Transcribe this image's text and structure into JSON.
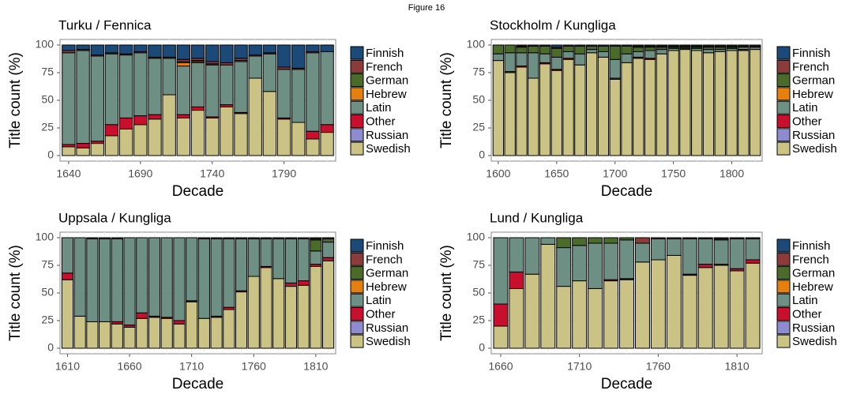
{
  "title": "Figure 16",
  "chart_data": [
    {
      "type": "bar",
      "stacked": true,
      "title": "Turku / Fennica",
      "x_label": "Decade",
      "y_label": "Title count (%)",
      "categories": [
        "1640",
        null,
        null,
        null,
        null,
        "1690",
        null,
        null,
        null,
        null,
        "1740",
        null,
        null,
        null,
        null,
        "1790",
        null,
        null,
        null
      ],
      "ylim": [
        0,
        100
      ],
      "yticks": [
        0,
        25,
        50,
        75,
        100
      ],
      "grid": true,
      "series": [
        {
          "name": "Finnish",
          "color": "#1c4a78",
          "values": [
            5,
            4,
            9,
            7,
            8,
            6,
            11,
            11,
            13,
            12,
            15,
            16,
            12,
            9,
            7,
            20,
            21,
            6,
            6
          ]
        },
        {
          "name": "French",
          "color": "#8c3b3b",
          "values": [
            2,
            1,
            1,
            1,
            1,
            1,
            1,
            1,
            2,
            2,
            2,
            2,
            2,
            1,
            1,
            2,
            1,
            1,
            0
          ]
        },
        {
          "name": "German",
          "color": "#4b6b2a",
          "values": [
            0,
            0,
            0,
            0,
            0,
            0,
            0,
            0,
            1,
            1,
            1,
            0,
            0,
            0,
            0,
            0,
            0,
            0,
            0
          ]
        },
        {
          "name": "Hebrew",
          "color": "#e5800f",
          "values": [
            0,
            0,
            0,
            0,
            0,
            0,
            0,
            0,
            3,
            1,
            0,
            0,
            1,
            0,
            0,
            0,
            0,
            0,
            0
          ]
        },
        {
          "name": "Latin",
          "color": "#6e8f84",
          "values": [
            83,
            84,
            77,
            64,
            57,
            57,
            51,
            33,
            44,
            40,
            47,
            36,
            46,
            20,
            34,
            44,
            48,
            71,
            66
          ]
        },
        {
          "name": "Other",
          "color": "#c8102e",
          "values": [
            2,
            4,
            2,
            10,
            10,
            8,
            4,
            0,
            3,
            3,
            1,
            2,
            1,
            0,
            0,
            1,
            0,
            7,
            7
          ]
        },
        {
          "name": "Russian",
          "color": "#8f8bd0",
          "values": [
            0,
            0,
            0,
            0,
            0,
            0,
            0,
            0,
            0,
            0,
            0,
            0,
            0,
            0,
            0,
            0,
            0,
            0,
            0
          ]
        },
        {
          "name": "Swedish",
          "color": "#cbc286",
          "values": [
            8,
            7,
            11,
            18,
            24,
            28,
            33,
            55,
            34,
            41,
            34,
            44,
            38,
            70,
            58,
            33,
            30,
            15,
            21
          ]
        }
      ]
    },
    {
      "type": "bar",
      "stacked": true,
      "title": "Stockholm / Kungliga",
      "x_label": "Decade",
      "y_label": "Title count (%)",
      "categories": [
        "1600",
        null,
        null,
        null,
        null,
        "1650",
        null,
        null,
        null,
        null,
        "1700",
        null,
        null,
        null,
        null,
        "1750",
        null,
        null,
        null,
        null,
        "1800",
        null,
        null
      ],
      "ylim": [
        0,
        100
      ],
      "yticks": [
        0,
        25,
        50,
        75,
        100
      ],
      "grid": true,
      "series": [
        {
          "name": "Finnish",
          "color": "#1c4a78",
          "values": [
            0,
            0,
            1,
            1,
            1,
            2,
            1,
            1,
            1,
            1,
            1,
            1,
            1,
            1,
            1,
            1,
            1,
            1,
            1,
            1,
            1,
            1,
            1
          ]
        },
        {
          "name": "French",
          "color": "#8c3b3b",
          "values": [
            0,
            0,
            1,
            0,
            0,
            1,
            0,
            0,
            0,
            0,
            0,
            0,
            1,
            1,
            1,
            1,
            1,
            1,
            1,
            1,
            1,
            1,
            1
          ]
        },
        {
          "name": "German",
          "color": "#4b6b2a",
          "values": [
            8,
            7,
            5,
            6,
            7,
            8,
            5,
            7,
            3,
            5,
            12,
            7,
            4,
            3,
            2,
            1,
            1,
            1,
            2,
            2,
            1,
            0,
            0
          ]
        },
        {
          "name": "Hebrew",
          "color": "#e5800f",
          "values": [
            0,
            0,
            0,
            0,
            0,
            0,
            0,
            0,
            0,
            0,
            0,
            0,
            0,
            0,
            0,
            0,
            0,
            0,
            0,
            0,
            0,
            0,
            0
          ]
        },
        {
          "name": "Latin",
          "color": "#6e8f84",
          "values": [
            6,
            17,
            12,
            23,
            8,
            11,
            6,
            10,
            3,
            5,
            17,
            8,
            5,
            7,
            4,
            2,
            1,
            2,
            3,
            2,
            2,
            2,
            2
          ]
        },
        {
          "name": "Other",
          "color": "#c8102e",
          "values": [
            0,
            1,
            1,
            0,
            1,
            1,
            1,
            0,
            0,
            0,
            1,
            0,
            1,
            1,
            0,
            0,
            0,
            0,
            0,
            0,
            0,
            1,
            0
          ]
        },
        {
          "name": "Russian",
          "color": "#8f8bd0",
          "values": [
            0,
            0,
            0,
            0,
            0,
            0,
            0,
            0,
            0,
            0,
            0,
            0,
            0,
            0,
            0,
            0,
            0,
            0,
            0,
            0,
            0,
            0,
            0
          ]
        },
        {
          "name": "Swedish",
          "color": "#cbc286",
          "values": [
            86,
            75,
            80,
            70,
            83,
            77,
            87,
            82,
            93,
            89,
            69,
            84,
            88,
            87,
            92,
            95,
            96,
            95,
            93,
            94,
            95,
            95,
            96
          ]
        }
      ]
    },
    {
      "type": "bar",
      "stacked": true,
      "title": "Uppsala / Kungliga",
      "x_label": "Decade",
      "y_label": "Title count (%)",
      "categories": [
        "1610",
        null,
        null,
        null,
        null,
        "1660",
        null,
        null,
        null,
        null,
        "1710",
        null,
        null,
        null,
        null,
        "1760",
        null,
        null,
        null,
        null,
        "1810",
        null
      ],
      "ylim": [
        0,
        100
      ],
      "yticks": [
        0,
        25,
        50,
        75,
        100
      ],
      "grid": true,
      "series": [
        {
          "name": "Finnish",
          "color": "#1c4a78",
          "values": [
            0,
            0,
            0,
            0,
            0,
            0,
            0,
            0,
            0,
            0,
            0,
            0,
            0,
            0,
            0,
            0,
            0,
            0,
            0,
            0,
            1,
            1
          ]
        },
        {
          "name": "French",
          "color": "#8c3b3b",
          "values": [
            0,
            0,
            1,
            1,
            1,
            0,
            0,
            0,
            0,
            0,
            0,
            0,
            0,
            0,
            0,
            0,
            1,
            0,
            0,
            0,
            1,
            0
          ]
        },
        {
          "name": "German",
          "color": "#4b6b2a",
          "values": [
            0,
            0,
            0,
            0,
            0,
            0,
            0,
            0,
            0,
            0,
            0,
            1,
            1,
            1,
            1,
            1,
            0,
            1,
            1,
            1,
            10,
            3
          ]
        },
        {
          "name": "Hebrew",
          "color": "#e5800f",
          "values": [
            0,
            0,
            0,
            0,
            0,
            0,
            0,
            0,
            0,
            0,
            0,
            0,
            0,
            0,
            0,
            0,
            0,
            0,
            0,
            0,
            0,
            0
          ]
        },
        {
          "name": "Latin",
          "color": "#6e8f84",
          "values": [
            32,
            71,
            75,
            75,
            75,
            79,
            68,
            71,
            72,
            75,
            57,
            72,
            70,
            62,
            47,
            34,
            25,
            36,
            40,
            38,
            12,
            14
          ]
        },
        {
          "name": "Other",
          "color": "#c8102e",
          "values": [
            6,
            0,
            0,
            0,
            2,
            2,
            5,
            1,
            1,
            3,
            1,
            0,
            1,
            2,
            1,
            0,
            1,
            0,
            3,
            4,
            2,
            3
          ]
        },
        {
          "name": "Russian",
          "color": "#8f8bd0",
          "values": [
            0,
            0,
            0,
            0,
            0,
            0,
            0,
            0,
            0,
            0,
            0,
            0,
            0,
            0,
            0,
            0,
            0,
            0,
            0,
            0,
            0,
            0
          ]
        },
        {
          "name": "Swedish",
          "color": "#cbc286",
          "values": [
            62,
            29,
            24,
            24,
            22,
            19,
            27,
            28,
            27,
            22,
            42,
            27,
            28,
            35,
            51,
            65,
            73,
            63,
            56,
            57,
            74,
            79
          ]
        }
      ]
    },
    {
      "type": "bar",
      "stacked": true,
      "title": "Lund / Kungliga",
      "x_label": "Decade",
      "y_label": "Title count (%)",
      "categories": [
        "1660",
        null,
        null,
        null,
        null,
        "1710",
        null,
        null,
        null,
        null,
        "1760",
        null,
        null,
        null,
        null,
        "1810",
        null
      ],
      "ylim": [
        0,
        100
      ],
      "yticks": [
        0,
        25,
        50,
        75,
        100
      ],
      "grid": true,
      "series": [
        {
          "name": "Finnish",
          "color": "#1c4a78",
          "values": [
            0,
            0,
            0,
            0,
            0,
            0,
            0,
            0,
            0,
            0,
            0,
            0,
            1,
            1,
            1,
            1,
            1
          ]
        },
        {
          "name": "French",
          "color": "#8c3b3b",
          "values": [
            0,
            0,
            0,
            0,
            0,
            0,
            0,
            0,
            0,
            5,
            0,
            0,
            0,
            0,
            1,
            0,
            0
          ]
        },
        {
          "name": "German",
          "color": "#4b6b2a",
          "values": [
            0,
            0,
            0,
            0,
            9,
            7,
            5,
            5,
            2,
            0,
            1,
            1,
            0,
            0,
            0,
            0,
            0
          ]
        },
        {
          "name": "Hebrew",
          "color": "#e5800f",
          "values": [
            0,
            0,
            0,
            0,
            0,
            0,
            0,
            0,
            0,
            0,
            0,
            0,
            0,
            0,
            0,
            0,
            0
          ]
        },
        {
          "name": "Latin",
          "color": "#6e8f84",
          "values": [
            60,
            31,
            33,
            6,
            35,
            32,
            41,
            33,
            35,
            17,
            19,
            15,
            32,
            23,
            22,
            27,
            19
          ]
        },
        {
          "name": "Other",
          "color": "#c8102e",
          "values": [
            20,
            15,
            0,
            0,
            0,
            0,
            0,
            1,
            1,
            0,
            0,
            0,
            1,
            3,
            1,
            2,
            3
          ]
        },
        {
          "name": "Russian",
          "color": "#8f8bd0",
          "values": [
            0,
            0,
            0,
            0,
            0,
            0,
            0,
            0,
            0,
            0,
            0,
            0,
            0,
            0,
            0,
            0,
            0
          ]
        },
        {
          "name": "Swedish",
          "color": "#cbc286",
          "values": [
            20,
            54,
            67,
            94,
            56,
            61,
            54,
            61,
            62,
            78,
            80,
            84,
            66,
            73,
            75,
            70,
            77
          ]
        }
      ]
    }
  ]
}
